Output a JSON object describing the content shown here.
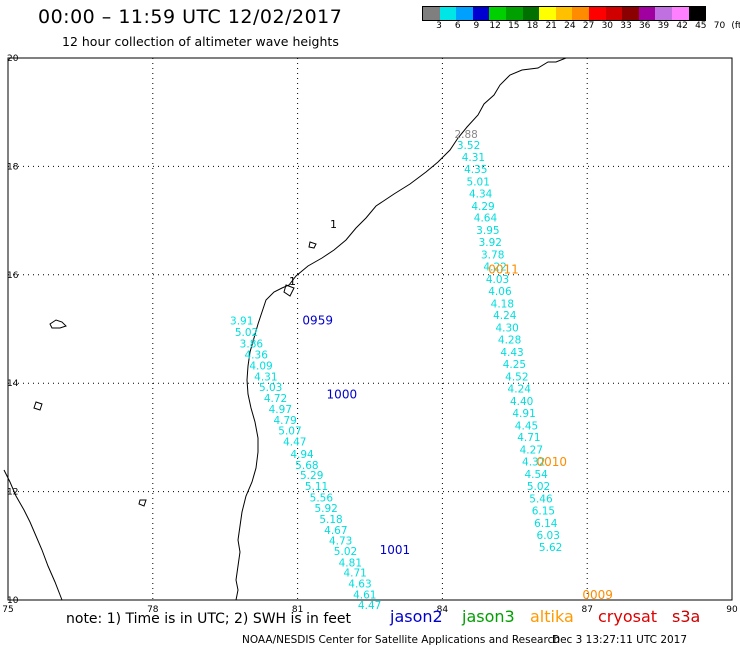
{
  "header": {
    "title": "00:00 – 11:59 UTC 12/02/2017",
    "subtitle": "12 hour collection of altimeter wave heights"
  },
  "colorbar": {
    "colors": [
      "#7f7f7f",
      "#00e5e5",
      "#00a0ff",
      "#0000d0",
      "#00d000",
      "#00a000",
      "#007000",
      "#ffff00",
      "#ffc000",
      "#ff8c00",
      "#ff0000",
      "#d00000",
      "#8b0000",
      "#a000a0",
      "#c070e0",
      "#ff80ff",
      "#000000"
    ],
    "labels": [
      "3",
      "6",
      "9",
      "12",
      "15",
      "18",
      "21",
      "24",
      "27",
      "30",
      "33",
      "36",
      "39",
      "42",
      "45",
      "70",
      "(ft)"
    ]
  },
  "chart_data": {
    "type": "map",
    "lon_range": [
      75,
      90
    ],
    "lat_range": [
      10,
      20
    ],
    "x_ticks": [
      "75",
      "78",
      "81",
      "84",
      "87",
      "90"
    ],
    "y_ticks": [
      "20",
      "18",
      "16",
      "14",
      "12",
      "10"
    ],
    "grid": true,
    "tracks": [
      {
        "satellite": "jason2",
        "color": "#00dede",
        "time_labels": [
          {
            "text": "0959",
            "lon": 81.1,
            "lat": 15.08,
            "color": "#0000cc"
          },
          {
            "text": "1000",
            "lon": 81.6,
            "lat": 13.72,
            "color": "#0000cc"
          },
          {
            "text": "1001",
            "lon": 82.7,
            "lat": 10.85,
            "color": "#0000cc"
          }
        ],
        "points": [
          {
            "lon": 79.6,
            "lat": 15.08,
            "swh": "3.91"
          },
          {
            "lon": 79.7,
            "lat": 14.87,
            "swh": "5.02"
          },
          {
            "lon": 79.8,
            "lat": 14.66,
            "swh": "3.86"
          },
          {
            "lon": 79.9,
            "lat": 14.46,
            "swh": "4.36"
          },
          {
            "lon": 80.0,
            "lat": 14.25,
            "swh": "4.09"
          },
          {
            "lon": 80.1,
            "lat": 14.05,
            "swh": "4.31"
          },
          {
            "lon": 80.2,
            "lat": 13.86,
            "swh": "5.03"
          },
          {
            "lon": 80.3,
            "lat": 13.65,
            "swh": "4.72"
          },
          {
            "lon": 80.4,
            "lat": 13.45,
            "swh": "4.97"
          },
          {
            "lon": 80.5,
            "lat": 13.25,
            "swh": "4.79"
          },
          {
            "lon": 80.6,
            "lat": 13.05,
            "swh": "5.07"
          },
          {
            "lon": 80.7,
            "lat": 12.85,
            "swh": "4.47"
          },
          {
            "lon": 80.85,
            "lat": 12.62,
            "swh": "4.94"
          },
          {
            "lon": 80.95,
            "lat": 12.42,
            "swh": "5.68"
          },
          {
            "lon": 81.05,
            "lat": 12.23,
            "swh": "5.29"
          },
          {
            "lon": 81.15,
            "lat": 12.03,
            "swh": "5.11"
          },
          {
            "lon": 81.25,
            "lat": 11.82,
            "swh": "5.56"
          },
          {
            "lon": 81.35,
            "lat": 11.62,
            "swh": "5.92"
          },
          {
            "lon": 81.45,
            "lat": 11.42,
            "swh": "5.18"
          },
          {
            "lon": 81.55,
            "lat": 11.22,
            "swh": "4.67"
          },
          {
            "lon": 81.65,
            "lat": 11.02,
            "swh": "4.73"
          },
          {
            "lon": 81.75,
            "lat": 10.83,
            "swh": "5.02"
          },
          {
            "lon": 81.85,
            "lat": 10.62,
            "swh": "4.81"
          },
          {
            "lon": 81.95,
            "lat": 10.43,
            "swh": "4.71"
          },
          {
            "lon": 82.05,
            "lat": 10.23,
            "swh": "4.63"
          },
          {
            "lon": 82.15,
            "lat": 10.03,
            "swh": "4.61"
          },
          {
            "lon": 82.25,
            "lat": 9.83,
            "swh": "4.47"
          }
        ]
      },
      {
        "satellite": "altika",
        "color": "#00dede",
        "time_labels": [
          {
            "text": "0011",
            "lon": 84.95,
            "lat": 16.02,
            "color": "#ff8c00"
          },
          {
            "text": "0010",
            "lon": 85.95,
            "lat": 12.47,
            "color": "#ff8c00"
          },
          {
            "text": "0009",
            "lon": 86.9,
            "lat": 10.02,
            "color": "#ff8c00"
          }
        ],
        "points": [
          {
            "lon": 84.25,
            "lat": 18.52,
            "swh": "2.88",
            "color": "#888888"
          },
          {
            "lon": 84.3,
            "lat": 18.32,
            "swh": "3.52"
          },
          {
            "lon": 84.4,
            "lat": 18.1,
            "swh": "4.31"
          },
          {
            "lon": 84.45,
            "lat": 17.88,
            "swh": "4.35"
          },
          {
            "lon": 84.5,
            "lat": 17.65,
            "swh": "5.01"
          },
          {
            "lon": 84.55,
            "lat": 17.43,
            "swh": "4.34"
          },
          {
            "lon": 84.6,
            "lat": 17.2,
            "swh": "4.29"
          },
          {
            "lon": 84.65,
            "lat": 16.98,
            "swh": "4.64"
          },
          {
            "lon": 84.7,
            "lat": 16.75,
            "swh": "3.95"
          },
          {
            "lon": 84.75,
            "lat": 16.53,
            "swh": "3.92"
          },
          {
            "lon": 84.8,
            "lat": 16.3,
            "swh": "3.78"
          },
          {
            "lon": 84.85,
            "lat": 16.08,
            "swh": "4.22"
          },
          {
            "lon": 84.9,
            "lat": 15.85,
            "swh": "4.03"
          },
          {
            "lon": 84.95,
            "lat": 15.63,
            "swh": "4.06"
          },
          {
            "lon": 85.0,
            "lat": 15.4,
            "swh": "4.18"
          },
          {
            "lon": 85.05,
            "lat": 15.18,
            "swh": "4.24"
          },
          {
            "lon": 85.1,
            "lat": 14.95,
            "swh": "4.30"
          },
          {
            "lon": 85.15,
            "lat": 14.73,
            "swh": "4.28"
          },
          {
            "lon": 85.2,
            "lat": 14.5,
            "swh": "4.43"
          },
          {
            "lon": 85.25,
            "lat": 14.28,
            "swh": "4.25"
          },
          {
            "lon": 85.3,
            "lat": 14.05,
            "swh": "4.52"
          },
          {
            "lon": 85.35,
            "lat": 13.83,
            "swh": "4.24"
          },
          {
            "lon": 85.4,
            "lat": 13.6,
            "swh": "4.40"
          },
          {
            "lon": 85.45,
            "lat": 13.38,
            "swh": "4.91"
          },
          {
            "lon": 85.5,
            "lat": 13.15,
            "swh": "4.45"
          },
          {
            "lon": 85.55,
            "lat": 12.93,
            "swh": "4.71"
          },
          {
            "lon": 85.6,
            "lat": 12.7,
            "swh": "4.27"
          },
          {
            "lon": 85.65,
            "lat": 12.48,
            "swh": "4.32"
          },
          {
            "lon": 85.7,
            "lat": 12.25,
            "swh": "4.54"
          },
          {
            "lon": 85.75,
            "lat": 12.03,
            "swh": "5.02"
          },
          {
            "lon": 85.8,
            "lat": 11.8,
            "swh": "5.46"
          },
          {
            "lon": 85.85,
            "lat": 11.58,
            "swh": "6.15"
          },
          {
            "lon": 85.9,
            "lat": 11.35,
            "swh": "6.14"
          },
          {
            "lon": 85.95,
            "lat": 11.13,
            "swh": "6.03"
          },
          {
            "lon": 86.0,
            "lat": 10.9,
            "swh": "5.62"
          }
        ]
      }
    ],
    "place_markers": [
      "1",
      "1"
    ]
  },
  "footer": {
    "note": "note:  1) Time is in UTC;  2) SWH is in feet",
    "satellites": [
      {
        "name": "jason2",
        "color": "#0000cc"
      },
      {
        "name": "jason3",
        "color": "#00a000"
      },
      {
        "name": "altika",
        "color": "#ff9900"
      },
      {
        "name": "cryosat",
        "color": "#dd0000"
      },
      {
        "name": "s3a",
        "color": "#cc0000"
      }
    ],
    "credit": "NOAA/NESDIS Center for Satellite Applications and Research",
    "timestamp": "Dec  3 13:27:11 UTC 2017"
  }
}
